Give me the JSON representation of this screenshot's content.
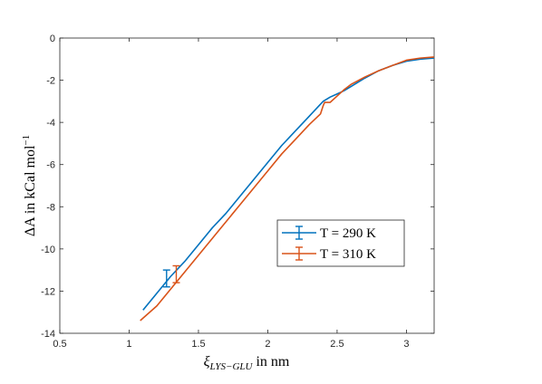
{
  "chart_data": {
    "type": "line",
    "title": "",
    "xlabel_symbol": "ξ",
    "xlabel_sub": "LYS−GLU",
    "xlabel_unit": " in nm",
    "ylabel_prefix": "ΔA in kCal mol",
    "ylabel_sup": "−1",
    "xlim": [
      0.5,
      3.2
    ],
    "ylim": [
      -14,
      0
    ],
    "xticks": [
      0.5,
      1,
      1.5,
      2,
      2.5,
      3
    ],
    "xtick_labels": [
      "0.5",
      "1",
      "1.5",
      "2",
      "2.5",
      "3"
    ],
    "yticks": [
      0,
      -2,
      -4,
      -6,
      -8,
      -10,
      -12,
      -14
    ],
    "ytick_labels": [
      "0",
      "-2",
      "-4",
      "-6",
      "-8",
      "-10",
      "-12",
      "-14"
    ],
    "grid": false,
    "legend_position": "center-right",
    "series": [
      {
        "name": "T = 290 K",
        "color": "#0072BD",
        "x": [
          1.1,
          1.2,
          1.3,
          1.4,
          1.5,
          1.6,
          1.7,
          1.8,
          1.9,
          2.0,
          2.1,
          2.2,
          2.3,
          2.4,
          2.45,
          2.5,
          2.55,
          2.6,
          2.7,
          2.8,
          2.9,
          3.0,
          3.1,
          3.2
        ],
        "y": [
          -12.9,
          -12.1,
          -11.3,
          -10.6,
          -9.8,
          -9.0,
          -8.3,
          -7.5,
          -6.7,
          -5.9,
          -5.1,
          -4.4,
          -3.7,
          -3.0,
          -2.8,
          -2.65,
          -2.5,
          -2.3,
          -1.9,
          -1.55,
          -1.3,
          -1.1,
          -1.0,
          -0.95
        ],
        "errorbar": {
          "x": 1.27,
          "y": -11.4,
          "err": 0.4
        }
      },
      {
        "name": "T = 310 K",
        "color": "#D95319",
        "x": [
          1.08,
          1.2,
          1.3,
          1.4,
          1.5,
          1.6,
          1.7,
          1.8,
          1.9,
          2.0,
          2.1,
          2.2,
          2.3,
          2.38,
          2.4,
          2.41,
          2.45,
          2.5,
          2.55,
          2.6,
          2.7,
          2.8,
          2.9,
          3.0,
          3.1,
          3.2
        ],
        "y": [
          -13.4,
          -12.7,
          -11.9,
          -11.1,
          -10.3,
          -9.5,
          -8.7,
          -7.9,
          -7.1,
          -6.3,
          -5.5,
          -4.8,
          -4.1,
          -3.6,
          -3.2,
          -3.05,
          -3.05,
          -2.75,
          -2.45,
          -2.2,
          -1.85,
          -1.55,
          -1.3,
          -1.05,
          -0.95,
          -0.9
        ],
        "errorbar": {
          "x": 1.34,
          "y": -11.2,
          "err": 0.4
        }
      }
    ]
  }
}
